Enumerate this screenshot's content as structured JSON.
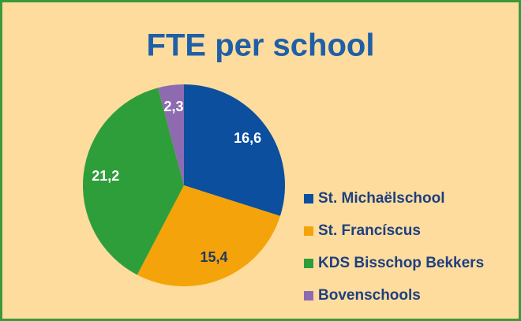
{
  "chart_data": {
    "type": "pie",
    "title": "FTE per school",
    "categories": [
      "St. Michaëlschool",
      "St. Francíscus",
      "KDS Bisschop Bekkers",
      "Bovenschools"
    ],
    "values": [
      16.6,
      15.4,
      21.2,
      2.3
    ],
    "value_labels": [
      "16,6",
      "15,4",
      "21,2",
      "2,3"
    ],
    "colors": [
      "#0b4f9e",
      "#f5a30a",
      "#2e9e3a",
      "#8e6bb0"
    ],
    "label_colors": [
      "#ffffff",
      "#1f3864",
      "#ffffff",
      "#ffffff"
    ],
    "legend": "right"
  }
}
